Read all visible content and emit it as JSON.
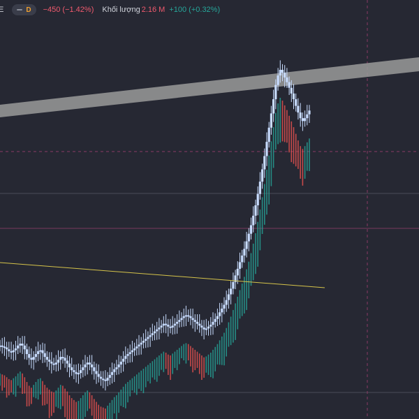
{
  "legend": {
    "symbol_fragment": "E",
    "interval": "D",
    "change": "−450 (−1.42%)",
    "volume_label": "Khối lượng",
    "volume_value": "2.16 M",
    "volume_change": "+100 (+0.32%)"
  },
  "colors": {
    "background": "#262833",
    "candle": "#c8dcff",
    "volume_up": "#26a69a",
    "volume_down": "#ef5350",
    "trendline": "#d6c44a",
    "channel": "#9a9a9a",
    "horizontal_line": "#8a3a66",
    "crosshair": "#8a3a66"
  },
  "chart_data": {
    "type": "candlestick",
    "series": [
      {
        "name": "price",
        "values": [
          470,
          468,
          466,
          462,
          458,
          456,
          460,
          464,
          470,
          474,
          470,
          462,
          452,
          444,
          440,
          446,
          452,
          458,
          460,
          454,
          446,
          440,
          436,
          432,
          430,
          434,
          440,
          446,
          444,
          438,
          432,
          424,
          418,
          414,
          410,
          412,
          418,
          424,
          430,
          434,
          430,
          424,
          416,
          410,
          404,
          400,
          398,
          396,
          402,
          408,
          414,
          420,
          424,
          430,
          436,
          442,
          448,
          452,
          456,
          460,
          464,
          468,
          472,
          476,
          480,
          484,
          488,
          492,
          496,
          500,
          504,
          508,
          512,
          516,
          514,
          510,
          508,
          512,
          516,
          520,
          524,
          528,
          532,
          534,
          532,
          528,
          524,
          520,
          516,
          512,
          508,
          504,
          506,
          510,
          514,
          520,
          526,
          532,
          540,
          548,
          556,
          566,
          578,
          590,
          604,
          618,
          632,
          646,
          660,
          674,
          690,
          706,
          724,
          744,
          766,
          790,
          816,
          842,
          870,
          900,
          930,
          960,
          990,
          1020,
          1040,
          1052,
          1046,
          1036,
          1026,
          1014,
          1002,
          990,
          976,
          962,
          950,
          944,
          950,
          958,
          966
        ]
      },
      {
        "name": "volume",
        "values": [
          3,
          4,
          3,
          5,
          4,
          3,
          4,
          5,
          3,
          4,
          5,
          4,
          6,
          5,
          4,
          3,
          4,
          5,
          4,
          6,
          5,
          4,
          7,
          6,
          5,
          4,
          5,
          6,
          5,
          7,
          8,
          6,
          9,
          7,
          6,
          5,
          6,
          7,
          6,
          5,
          4,
          5,
          6,
          7,
          8,
          6,
          5,
          4,
          5,
          6,
          5,
          4,
          6,
          5,
          4,
          5,
          6,
          5,
          4,
          3,
          4,
          5,
          4,
          5,
          6,
          5,
          4,
          5,
          4,
          5,
          6,
          5,
          4,
          5,
          4,
          5,
          6,
          5,
          4,
          5,
          4,
          3,
          4,
          5,
          4,
          5,
          6,
          5,
          4,
          5,
          6,
          5,
          4,
          5,
          6,
          7,
          6,
          5,
          6,
          7,
          8,
          7,
          6,
          7,
          8,
          9,
          8,
          7,
          8,
          9,
          10,
          9,
          8,
          9,
          10,
          11,
          10,
          9,
          10,
          11,
          12,
          11,
          10,
          9,
          10,
          11,
          10,
          9,
          8,
          9,
          10,
          9,
          8,
          7,
          8,
          9,
          8,
          7,
          8
        ]
      }
    ],
    "annotations": [
      "trendline",
      "parallel-channel",
      "horizontal-lines"
    ]
  }
}
